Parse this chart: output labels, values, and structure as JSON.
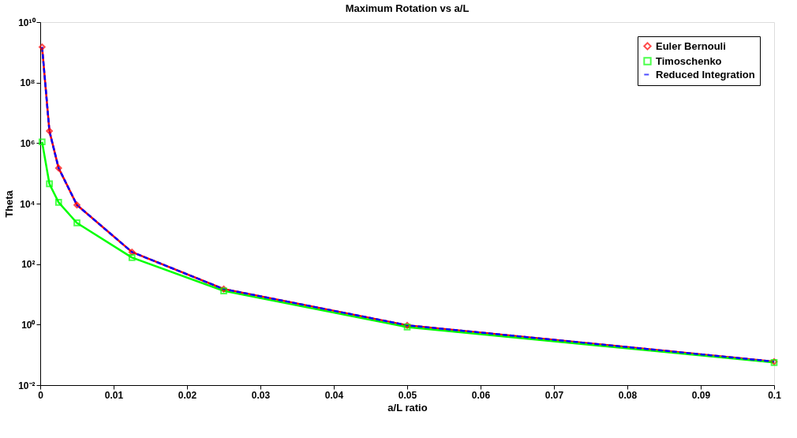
{
  "chart_data": {
    "type": "line",
    "title": "Maximum Rotation vs a/L",
    "xlabel": "a/L ratio",
    "ylabel": "Theta",
    "log": "y",
    "grid": false,
    "legend": "top right",
    "xlim": [
      0,
      0.1
    ],
    "xticks": [
      0,
      0.01,
      0.02,
      0.03,
      0.04,
      0.05,
      0.06,
      0.07,
      0.08,
      0.09,
      0.1
    ],
    "ylim": [
      0.01,
      10000000000
    ],
    "yticks": [
      {
        "value": 0.01,
        "label": "10⁻²"
      },
      {
        "value": 1,
        "label": "10⁰"
      },
      {
        "value": 100,
        "label": "10²"
      },
      {
        "value": 10000,
        "label": "10⁴"
      },
      {
        "value": 1000000,
        "label": "10⁶"
      },
      {
        "value": 100000000,
        "label": "10⁸"
      },
      {
        "value": 10000000000,
        "label": "10¹⁰"
      }
    ],
    "x": [
      0.00025,
      0.00125,
      0.0025,
      0.005,
      0.0125,
      0.025,
      0.05,
      0.1
    ],
    "series": [
      {
        "name": "Euler Bernouli",
        "color": "#ff0000",
        "marker": "diamond",
        "line_style": "solid",
        "values": [
          1500000000,
          2500000,
          150000,
          9000,
          250,
          15,
          0.95,
          0.06
        ]
      },
      {
        "name": "Timoschenko",
        "color": "#00ff00",
        "marker": "square",
        "line_style": "solid",
        "values": [
          1100000,
          45000,
          11000,
          2300,
          165,
          13,
          0.83,
          0.056
        ]
      },
      {
        "name": "Reduced Integration",
        "color": "#0000ff",
        "marker": "none",
        "line_style": "dashed",
        "values": [
          1500000000,
          2500000,
          150000,
          9000,
          250,
          15,
          0.95,
          0.06
        ]
      }
    ]
  }
}
